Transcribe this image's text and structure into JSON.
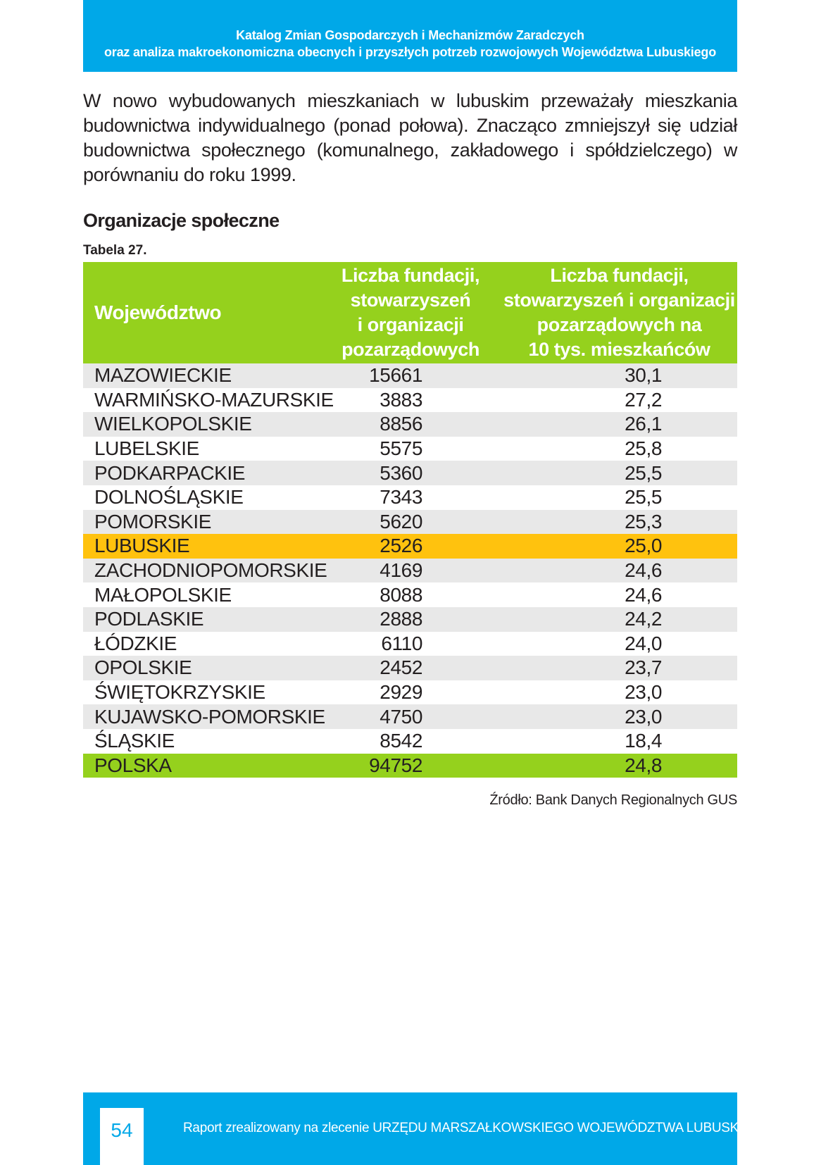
{
  "header": {
    "line1": "Katalog Zmian Gospodarczych i Mechanizmów Zaradczych",
    "line2": "oraz analiza makroekonomiczna obecnych i przyszłych potrzeb rozwojowych Województwa Lubuskiego"
  },
  "intro_paragraph": "W nowo wybudowanych mieszkaniach w lubuskim przeważały mieszkania budownictwa indywidualnego (ponad połowa). Znacząco zmniejszył się udział budownictwa społecznego (komunalnego, zakładowego i spółdzielczego) w porównaniu do roku 1999.",
  "section_title": "Organizacje społeczne",
  "table_caption": "Tabela 27.",
  "table": {
    "headers": {
      "col1": "Województwo",
      "col2_lines": [
        "Liczba fundacji,",
        "stowarzyszeń",
        "i organizacji",
        "pozarządowych"
      ],
      "col3_lines": [
        "Liczba fundacji,",
        "stowarzyszeń i organizacji",
        "pozarządowych na",
        "10 tys. mieszkańców"
      ]
    },
    "rows": [
      {
        "name": "MAZOWIECKIE",
        "count": "15661",
        "per10k": "30,1"
      },
      {
        "name": "WARMIŃSKO-MAZURSKIE",
        "count": "3883",
        "per10k": "27,2"
      },
      {
        "name": "WIELKOPOLSKIE",
        "count": "8856",
        "per10k": "26,1"
      },
      {
        "name": "LUBELSKIE",
        "count": "5575",
        "per10k": "25,8"
      },
      {
        "name": "PODKARPACKIE",
        "count": "5360",
        "per10k": "25,5"
      },
      {
        "name": "DOLNOŚLĄSKIE",
        "count": "7343",
        "per10k": "25,5"
      },
      {
        "name": "POMORSKIE",
        "count": "5620",
        "per10k": "25,3"
      },
      {
        "name": "LUBUSKIE",
        "count": "2526",
        "per10k": "25,0"
      },
      {
        "name": "ZACHODNIOPOMORSKIE",
        "count": "4169",
        "per10k": "24,6"
      },
      {
        "name": "MAŁOPOLSKIE",
        "count": "8088",
        "per10k": "24,6"
      },
      {
        "name": "PODLASKIE",
        "count": "2888",
        "per10k": "24,2"
      },
      {
        "name": "ŁÓDZKIE",
        "count": "6110",
        "per10k": "24,0"
      },
      {
        "name": "OPOLSKIE",
        "count": "2452",
        "per10k": "23,7"
      },
      {
        "name": "ŚWIĘTOKRZYSKIE",
        "count": "2929",
        "per10k": "23,0"
      },
      {
        "name": "KUJAWSKO-POMORSKIE",
        "count": "4750",
        "per10k": "23,0"
      },
      {
        "name": "ŚLĄSKIE",
        "count": "8542",
        "per10k": "18,4"
      },
      {
        "name": "POLSKA",
        "count": "94752",
        "per10k": "24,8"
      }
    ]
  },
  "source_note": "Źródło: Bank Danych Regionalnych GUS",
  "footer": {
    "page_number": "54",
    "text": "Raport zrealizowany na zlecenie URZĘDU MARSZAŁKOWSKIEGO WOJEWÓDZTWA LUBUSKIEGO"
  },
  "colors": {
    "header_blue": "#00a8e8",
    "table_header_green": "#95d11d",
    "highlight_yellow": "#ffc20e",
    "stripe_gray": "#e8e8e8"
  }
}
